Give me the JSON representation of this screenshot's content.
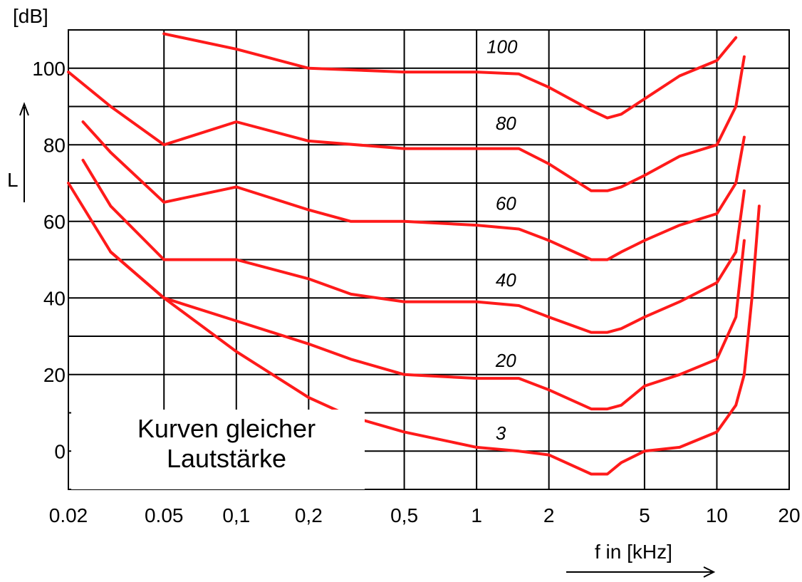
{
  "chart_data": {
    "type": "line",
    "title": "",
    "xlabel": "f in [kHz]",
    "ylabel": "L",
    "yunit": "[dB]",
    "x_scale": "log",
    "xlim": [
      0.02,
      20
    ],
    "ylim": [
      -10,
      110
    ],
    "grid": true,
    "x_ticks": [
      {
        "value": 0.02,
        "label": "0.02"
      },
      {
        "value": 0.05,
        "label": "0.05"
      },
      {
        "value": 0.1,
        "label": "0,1"
      },
      {
        "value": 0.2,
        "label": "0,2"
      },
      {
        "value": 0.5,
        "label": "0,5"
      },
      {
        "value": 1,
        "label": "1"
      },
      {
        "value": 2,
        "label": "2"
      },
      {
        "value": 5,
        "label": "5"
      },
      {
        "value": 10,
        "label": "10"
      },
      {
        "value": 20,
        "label": "20"
      }
    ],
    "y_ticks": [
      {
        "value": 0,
        "label": "0"
      },
      {
        "value": 20,
        "label": "20"
      },
      {
        "value": 40,
        "label": "40"
      },
      {
        "value": 60,
        "label": "60"
      },
      {
        "value": 80,
        "label": "80"
      },
      {
        "value": 100,
        "label": "100"
      }
    ],
    "annotation": [
      "Kurven gleicher",
      "Lautstärke"
    ],
    "series": [
      {
        "name": "100",
        "label_at": [
          1.1,
          104
        ],
        "x": [
          0.05,
          0.1,
          0.2,
          0.5,
          1,
          1.5,
          2,
          3,
          3.5,
          4,
          5,
          7,
          10,
          12
        ],
        "y": [
          109,
          105,
          100,
          99,
          99,
          98.5,
          95,
          89,
          87,
          88,
          92,
          98,
          102,
          108
        ]
      },
      {
        "name": "80",
        "label_at": [
          1.2,
          84
        ],
        "x": [
          0.02,
          0.03,
          0.05,
          0.1,
          0.2,
          0.5,
          1,
          1.5,
          2,
          3,
          3.5,
          4,
          5,
          7,
          10,
          12,
          13
        ],
        "y": [
          99,
          90,
          80,
          86,
          81,
          79,
          79,
          79,
          75,
          68,
          68,
          69,
          72,
          77,
          80,
          90,
          103
        ]
      },
      {
        "name": "60",
        "label_at": [
          1.2,
          63
        ],
        "x": [
          0.023,
          0.03,
          0.05,
          0.1,
          0.2,
          0.3,
          0.5,
          1,
          1.5,
          2,
          3,
          3.5,
          4,
          5,
          7,
          10,
          12,
          13
        ],
        "y": [
          86,
          78,
          65,
          69,
          63,
          60,
          60,
          59,
          58,
          55,
          50,
          50,
          52,
          55,
          59,
          62,
          70,
          82
        ]
      },
      {
        "name": "40",
        "label_at": [
          1.2,
          43
        ],
        "x": [
          0.023,
          0.03,
          0.05,
          0.1,
          0.2,
          0.3,
          0.5,
          1,
          1.5,
          2,
          3,
          3.5,
          4,
          5,
          7,
          10,
          12,
          13
        ],
        "y": [
          76,
          64,
          50,
          50,
          45,
          41,
          39,
          39,
          38,
          35,
          31,
          31,
          32,
          35,
          39,
          44,
          52,
          68
        ]
      },
      {
        "name": "20",
        "label_at": [
          1.2,
          22
        ],
        "x": [
          0.02,
          0.03,
          0.05,
          0.1,
          0.2,
          0.3,
          0.5,
          1,
          1.5,
          2,
          3,
          3.5,
          4,
          5,
          7,
          10,
          12,
          13
        ],
        "y": [
          70,
          52,
          40,
          34,
          28,
          24,
          20,
          19,
          19,
          16,
          11,
          11,
          12,
          17,
          20,
          24,
          35,
          55
        ]
      },
      {
        "name": "3",
        "label_at": [
          1.2,
          3
        ],
        "x": [
          0.03,
          0.05,
          0.1,
          0.2,
          0.3,
          0.5,
          1,
          1.5,
          2,
          3,
          3.5,
          4,
          5,
          7,
          10,
          12,
          13,
          14,
          15
        ],
        "y": [
          52,
          40,
          26,
          14,
          9,
          5,
          1,
          0,
          -1,
          -6,
          -6,
          -3,
          0,
          1,
          5,
          12,
          20,
          40,
          64
        ]
      }
    ]
  }
}
